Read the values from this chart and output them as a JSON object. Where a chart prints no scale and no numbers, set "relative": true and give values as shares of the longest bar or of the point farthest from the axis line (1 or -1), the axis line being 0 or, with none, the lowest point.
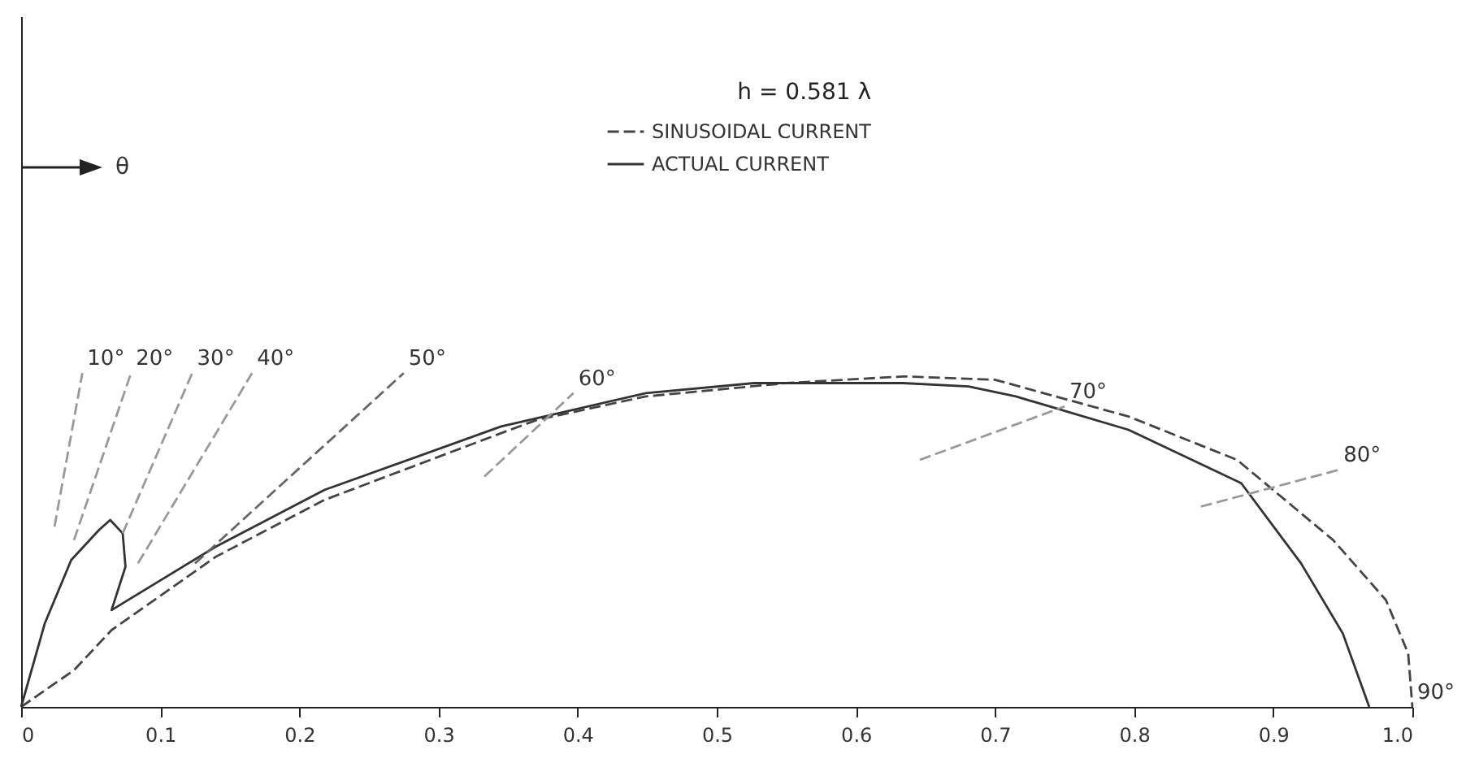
{
  "chart_data": {
    "type": "line",
    "relative": true,
    "legend": "top right",
    "legend_title": "h = 0.581 λ",
    "xlim": [
      0,
      1
    ],
    "xticks": [
      0,
      0.1,
      0.2,
      0.3,
      0.4,
      0.5,
      0.6,
      0.7,
      0.8,
      0.9,
      {
        "value": 1,
        "label": "1.0"
      }
    ],
    "grid": false,
    "annotations": [
      "θ",
      {
        "text": "10°",
        "x": 0.044,
        "y": 1.0
      },
      {
        "text": "20°",
        "x": 0.079,
        "y": 1.0
      },
      {
        "text": "30°",
        "x": 0.123,
        "y": 1.0
      },
      {
        "text": "40°",
        "x": 0.166,
        "y": 1.0
      },
      {
        "text": "50°",
        "x": 0.275,
        "y": 1.0
      },
      {
        "text": "60°",
        "x": 0.397,
        "y": 0.94
      },
      {
        "text": "70°",
        "x": 0.75,
        "y": 0.9
      },
      {
        "text": "80°",
        "x": 0.947,
        "y": 0.71
      },
      {
        "text": "90°",
        "x": 1.0,
        "y": 0
      }
    ],
    "series": [
      {
        "name": "SINUSOIDAL CURRENT",
        "color": "#444444",
        "line_style": "dashed",
        "x": [
          0,
          0.038,
          0.065,
          0.14,
          0.218,
          0.345,
          0.371,
          0.449,
          0.55,
          0.634,
          0.7,
          0.796,
          0.874,
          0.943,
          0.981,
          0.997,
          1.0
        ],
        "values": [
          0,
          0.11,
          0.23,
          0.45,
          0.62,
          0.82,
          0.86,
          0.93,
          0.97,
          0.99,
          0.98,
          0.87,
          0.74,
          0.5,
          0.32,
          0.16,
          0
        ]
      },
      {
        "name": "ACTUAL CURRENT",
        "color": "#333333",
        "line_style": "solid",
        "x": [
          0,
          0.017,
          0.036,
          0.056,
          0.064,
          0.073,
          0.075,
          0.065,
          0.14,
          0.218,
          0.345,
          0.449,
          0.527,
          0.634,
          0.681,
          0.715,
          0.796,
          0.877,
          0.92,
          0.95,
          0.969
        ],
        "values": [
          0,
          0.25,
          0.44,
          0.53,
          0.56,
          0.52,
          0.42,
          0.29,
          0.48,
          0.65,
          0.84,
          0.94,
          0.97,
          0.97,
          0.96,
          0.93,
          0.83,
          0.67,
          0.43,
          0.22,
          0
        ]
      },
      {
        "color": "#999999",
        "line_style": "dashed",
        "x": [
          0.024,
          0.044
        ],
        "values": [
          0.54,
          1.0
        ]
      },
      {
        "color": "#999999",
        "line_style": "dashed",
        "x": [
          0.038,
          0.079
        ],
        "values": [
          0.5,
          1.0
        ]
      },
      {
        "color": "#999999",
        "line_style": "dashed",
        "x": [
          0.073,
          0.123
        ],
        "values": [
          0.52,
          1.0
        ]
      },
      {
        "color": "#999999",
        "line_style": "dashed",
        "x": [
          0.084,
          0.166
        ],
        "values": [
          0.43,
          1.0
        ]
      },
      {
        "color": "#666666",
        "line_style": "dashed",
        "x": [
          0.125,
          0.275
        ],
        "values": [
          0.43,
          1.0
        ]
      },
      {
        "color": "#999999",
        "line_style": "dashed",
        "x": [
          0.333,
          0.397
        ],
        "values": [
          0.69,
          0.94
        ]
      },
      {
        "color": "#999999",
        "line_style": "dashed",
        "x": [
          0.646,
          0.75
        ],
        "values": [
          0.74,
          0.9
        ]
      },
      {
        "color": "#999999",
        "line_style": "dashed",
        "x": [
          0.848,
          0.947
        ],
        "values": [
          0.6,
          0.71
        ]
      }
    ]
  }
}
